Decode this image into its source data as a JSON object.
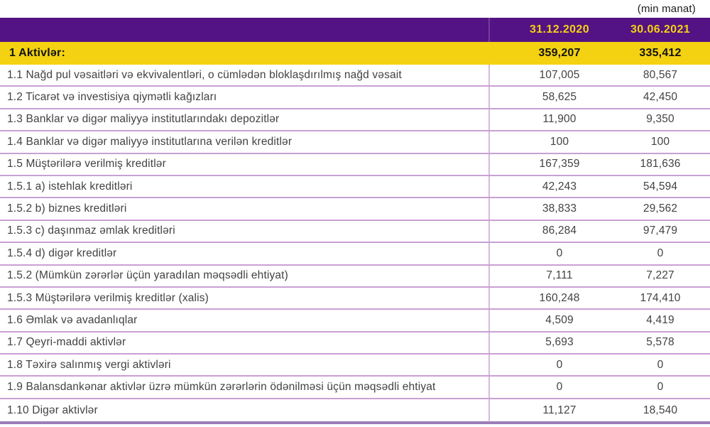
{
  "unit_note": "(min manat)",
  "columns": {
    "col1": "31.12.2020",
    "col2": "30.06.2021"
  },
  "total_row": {
    "label": "1 Aktivlər:",
    "v1": "359,207",
    "v2": "335,412"
  },
  "rows": [
    {
      "label": "1.1 Nağd pul vəsaitləri və ekvivalentləri, o cümlədən bloklaşdırılmış nağd vəsait",
      "v1": "107,005",
      "v2": "80,567"
    },
    {
      "label": "1.2 Ticarət və investisiya qiymətli kağızları",
      "v1": "58,625",
      "v2": "42,450"
    },
    {
      "label": "1.3 Banklar və digər maliyyə institutlarındakı depozitlər",
      "v1": "11,900",
      "v2": "9,350"
    },
    {
      "label": "1.4 Banklar və digər maliyyə institutlarına verilən kreditlər",
      "v1": "100",
      "v2": "100"
    },
    {
      "label": "1.5 Müştərilərə verilmiş kreditlər",
      "v1": "167,359",
      "v2": "181,636"
    },
    {
      "label": "1.5.1 a) istehlak kreditləri",
      "v1": "42,243",
      "v2": "54,594"
    },
    {
      "label": "1.5.2 b) biznes kreditləri",
      "v1": "38,833",
      "v2": "29,562"
    },
    {
      "label": "1.5.3 c) daşınmaz əmlak kreditləri",
      "v1": "86,284",
      "v2": "97,479"
    },
    {
      "label": "1.5.4 d) digər kreditlər",
      "v1": "0",
      "v2": "0"
    },
    {
      "label": "1.5.2 (Mümkün zərərlər üçün yaradılan məqsədli ehtiyat)",
      "v1": "7,111",
      "v2": "7,227"
    },
    {
      "label": "1.5.3 Müştərilərə verilmiş kreditlər (xalis)",
      "v1": "160,248",
      "v2": "174,410"
    },
    {
      "label": "1.6 Əmlak və avadanlıqlar",
      "v1": "4,509",
      "v2": "4,419"
    },
    {
      "label": "1.7 Qeyri-maddi aktivlər",
      "v1": "5,693",
      "v2": "5,578"
    },
    {
      "label": "1.8 Təxirə salınmış vergi aktivləri",
      "v1": "0",
      "v2": "0"
    },
    {
      "label": "1.9 Balansdankənar aktivlər üzrə mümkün zərərlərin ödənilməsi üçün məqsədli ehtiyat",
      "v1": "0",
      "v2": "0"
    },
    {
      "label": "1.10 Digər aktivlər",
      "v1": "11,127",
      "v2": "18,540"
    }
  ],
  "colors": {
    "header_purple": "#541384",
    "gold": "#F4D211",
    "row_separator": "#C9A0D4",
    "bottom_border": "#9B7CB8",
    "header_text": "#F4D211",
    "body_text": "#424242"
  }
}
